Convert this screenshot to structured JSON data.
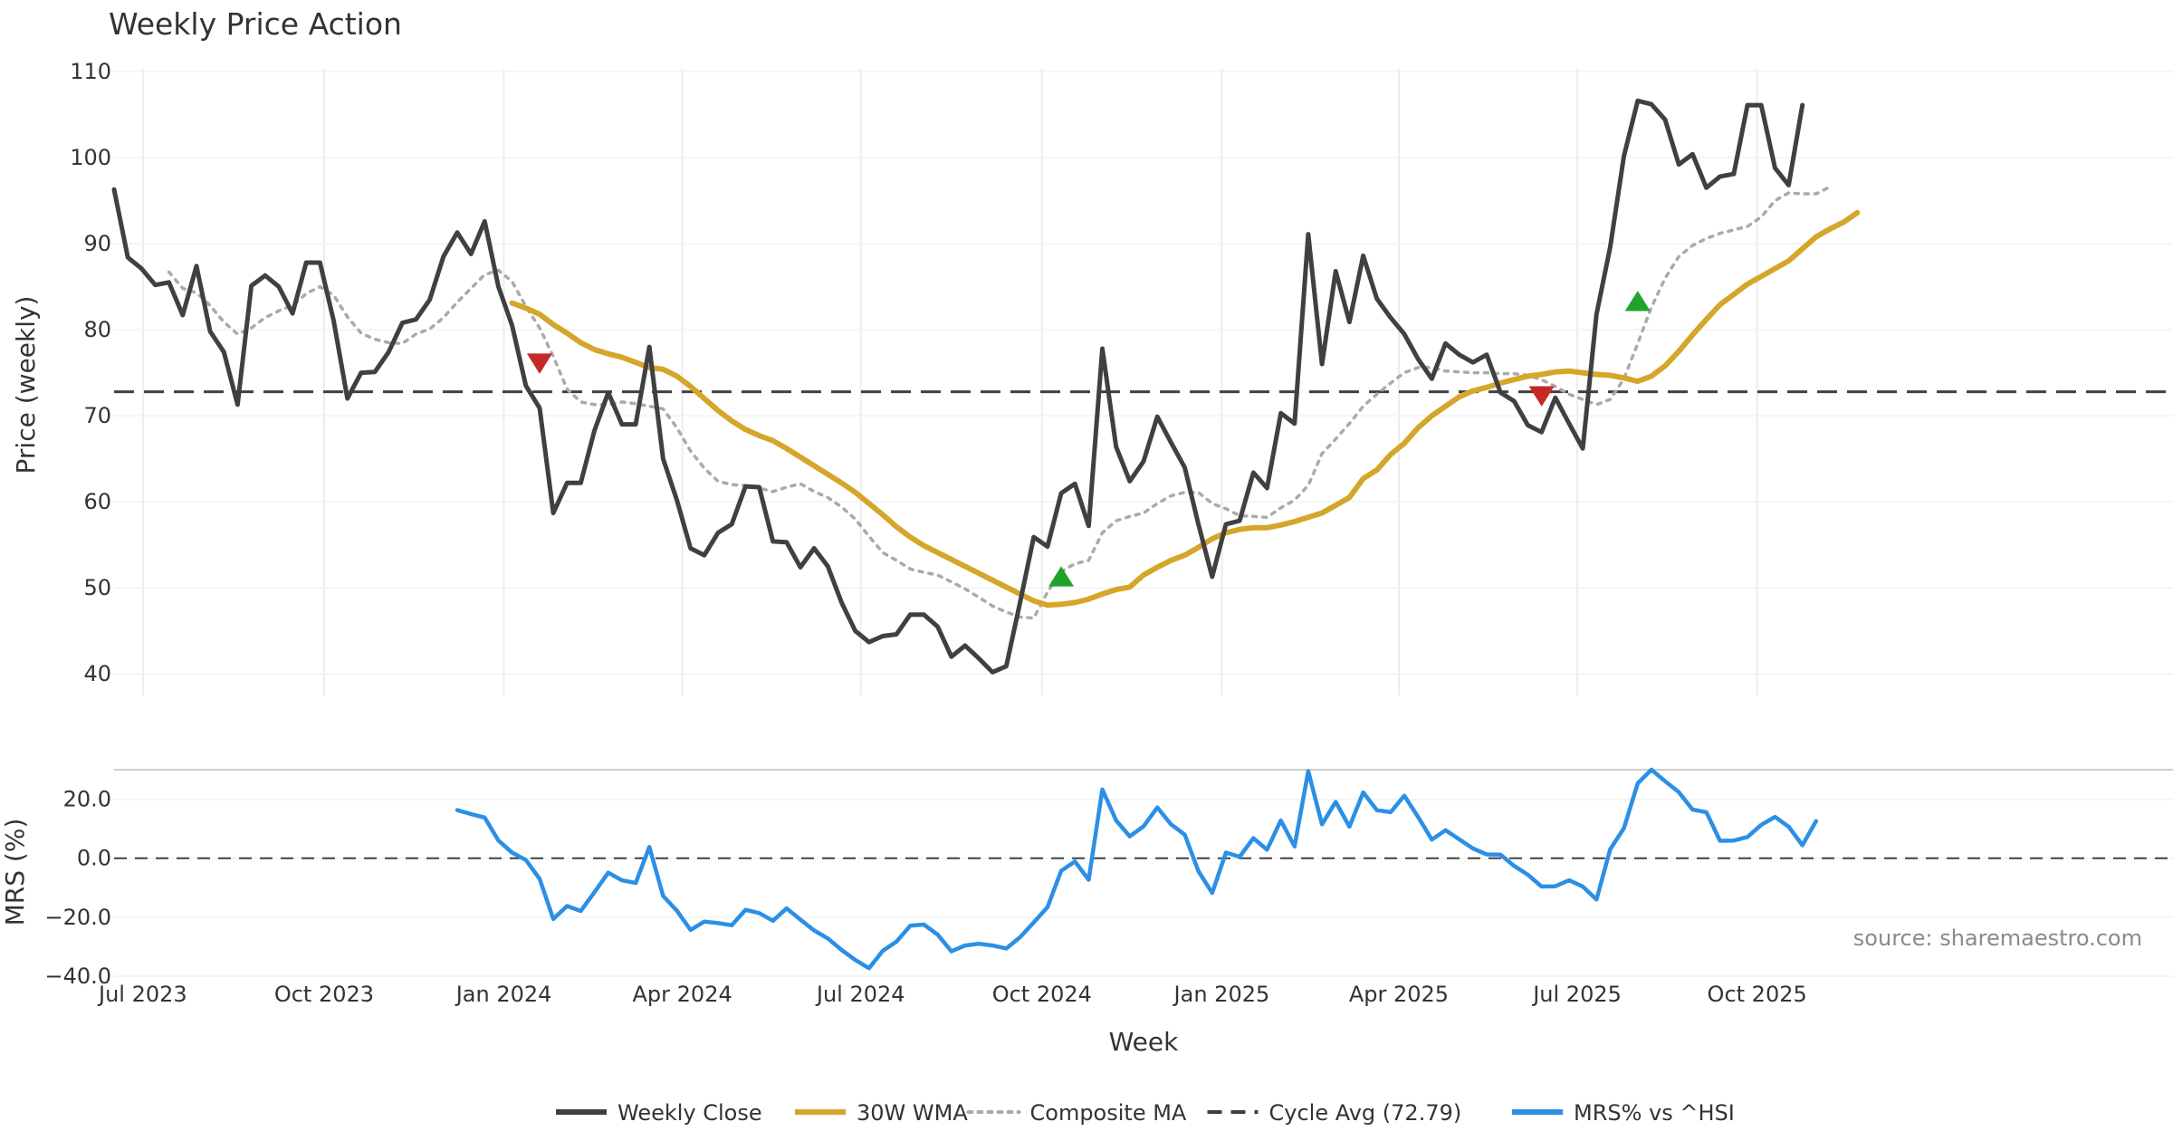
{
  "chart_data": {
    "type": "line",
    "title": "Weekly Price Action",
    "xlabel": "Week",
    "source": "source: sharemaestro.com",
    "x_start": "2023-06-16",
    "x_step_days": 7,
    "xticks": [
      {
        "label": "Jul 2023",
        "week": 2.1
      },
      {
        "label": "Oct 2023",
        "week": 15.3
      },
      {
        "label": "Jan 2024",
        "week": 28.4
      },
      {
        "label": "Apr 2024",
        "week": 41.4
      },
      {
        "label": "Jul 2024",
        "week": 54.4
      },
      {
        "label": "Oct 2024",
        "week": 67.6
      },
      {
        "label": "Jan 2025",
        "week": 80.7
      },
      {
        "label": "Apr 2025",
        "week": 93.6
      },
      {
        "label": "Jul 2025",
        "week": 106.6
      },
      {
        "label": "Oct 2025",
        "week": 119.7
      }
    ],
    "price_panel": {
      "ylabel": "Price (weekly)",
      "ylim": [
        37.5,
        112
      ],
      "yticks": [
        40,
        50,
        60,
        70,
        80,
        90,
        100,
        110
      ],
      "series": [
        {
          "name": "Weekly Close",
          "color": "#404040",
          "start_week": 0,
          "values": [
            96.3,
            88.4,
            87.1,
            85.2,
            85.5,
            81.7,
            87.4,
            79.8,
            77.4,
            71.3,
            85.1,
            86.3,
            85.0,
            81.9,
            87.8,
            87.8,
            81.0,
            72.0,
            75.0,
            75.1,
            77.4,
            80.8,
            81.2,
            83.5,
            88.5,
            91.3,
            88.8,
            92.6,
            85.0,
            80.5,
            73.5,
            70.9,
            58.7,
            62.2,
            62.2,
            68.3,
            72.7,
            69.0,
            69.0,
            78.0,
            65.0,
            60.2,
            54.6,
            53.8,
            56.4,
            57.4,
            61.8,
            61.7,
            55.4,
            55.3,
            52.4,
            54.6,
            52.5,
            48.3,
            45.0,
            43.7,
            44.4,
            44.6,
            46.9,
            46.9,
            45.5,
            42.0,
            43.3,
            41.8,
            40.2,
            40.9,
            48.3,
            55.9,
            54.8,
            61.0,
            62.1,
            57.2,
            77.8,
            66.4,
            62.4,
            64.7,
            69.9,
            66.9,
            64.0,
            57.4,
            51.3,
            57.4,
            57.8,
            63.4,
            61.6,
            70.3,
            69.1,
            91.1,
            76.0,
            86.8,
            80.9,
            88.6,
            83.6,
            81.4,
            79.5,
            76.6,
            74.3,
            78.4,
            77.1,
            76.2,
            77.1,
            72.7,
            71.7,
            68.9,
            68.1,
            72.1,
            69.1,
            66.2,
            81.8,
            89.6,
            100.2,
            106.6,
            106.2,
            104.4,
            99.2,
            100.4,
            96.5,
            97.8,
            98.1,
            106.1,
            106.1,
            98.8,
            96.8,
            106.1
          ]
        },
        {
          "name": "30W WMA",
          "color": "#d4a62a",
          "start_week": 29,
          "values": [
            83.1,
            82.5,
            81.8,
            80.6,
            79.6,
            78.5,
            77.7,
            77.2,
            76.8,
            76.2,
            75.6,
            75.4,
            74.6,
            73.4,
            72.0,
            70.6,
            69.4,
            68.4,
            67.7,
            67.1,
            66.2,
            65.2,
            64.2,
            63.2,
            62.2,
            61.1,
            59.8,
            58.5,
            57.1,
            55.9,
            54.9,
            54.1,
            53.3,
            52.5,
            51.7,
            50.9,
            50.1,
            49.3,
            48.5,
            48.0,
            48.1,
            48.3,
            48.7,
            49.3,
            49.8,
            50.1,
            51.5,
            52.4,
            53.2,
            53.8,
            54.7,
            55.7,
            56.4,
            56.8,
            57.0,
            57.0,
            57.3,
            57.7,
            58.2,
            58.7,
            59.6,
            60.5,
            62.7,
            63.7,
            65.5,
            66.8,
            68.6,
            70.0,
            71.1,
            72.2,
            72.9,
            73.3,
            73.8,
            74.2,
            74.6,
            74.8,
            75.1,
            75.2,
            75.0,
            74.8,
            74.7,
            74.4,
            74.0,
            74.6,
            75.8,
            77.5,
            79.4,
            81.2,
            82.9,
            84.1,
            85.3,
            86.2,
            87.1,
            88.0,
            89.4,
            90.8,
            91.7,
            92.5,
            93.6
          ]
        },
        {
          "name": "Composite MA",
          "color": "#aaaaaa",
          "start_week": 4,
          "values": [
            86.7,
            84.8,
            84.3,
            82.8,
            80.9,
            79.5,
            80.2,
            81.4,
            82.2,
            82.8,
            84.2,
            85.0,
            84.0,
            81.5,
            79.6,
            78.9,
            78.5,
            78.4,
            79.5,
            80.1,
            81.4,
            83.2,
            84.8,
            86.4,
            86.9,
            85.6,
            82.7,
            80.2,
            76.9,
            73.1,
            71.6,
            71.3,
            71.3,
            71.6,
            71.4,
            71.1,
            70.8,
            68.6,
            65.9,
            63.9,
            62.4,
            62.0,
            61.9,
            61.6,
            61.2,
            61.7,
            62.1,
            61.2,
            60.5,
            59.4,
            58.0,
            56.0,
            54.1,
            53.2,
            52.2,
            51.8,
            51.5,
            50.7,
            49.9,
            48.9,
            47.9,
            47.2,
            46.6,
            46.5,
            49.5,
            51.9,
            52.8,
            53.2,
            56.4,
            57.8,
            58.3,
            58.7,
            59.8,
            60.7,
            61.1,
            61.1,
            59.8,
            59.2,
            58.4,
            58.3,
            58.2,
            59.3,
            60.2,
            61.9,
            65.6,
            67.3,
            69.1,
            71.1,
            72.5,
            73.8,
            75.0,
            75.6,
            75.6,
            75.2,
            75.1,
            75.0,
            75.0,
            74.9,
            74.9,
            74.7,
            74.2,
            73.4,
            72.5,
            71.9,
            71.3,
            71.9,
            74.3,
            78.4,
            82.6,
            86.0,
            88.5,
            89.8,
            90.6,
            91.2,
            91.6,
            92.0,
            93.1,
            95.0,
            95.9,
            95.8,
            95.8,
            96.6
          ]
        }
      ],
      "reference_line": {
        "name": "Cycle Avg (72.79)",
        "value": 72.79,
        "color": "#404040"
      },
      "markers": [
        {
          "type": "sell",
          "week": 31,
          "value": 76.2,
          "color": "#c62828"
        },
        {
          "type": "buy",
          "week": 69,
          "value": 51.2,
          "color": "#1fa32a"
        },
        {
          "type": "sell",
          "week": 104,
          "value": 72.4,
          "color": "#c62828"
        },
        {
          "type": "buy",
          "week": 111,
          "value": 83.2,
          "color": "#1fa32a"
        }
      ]
    },
    "mrs_panel": {
      "ylabel": "MRS (%)",
      "ylim": [
        -40,
        30
      ],
      "yticks": [
        -40,
        -20,
        0,
        20
      ],
      "ytick_labels": [
        "−40.0",
        "−20.0",
        "0.0",
        "20.0"
      ],
      "series": [
        {
          "name": "MRS% vs ^HSI",
          "color": "#2b8fe6",
          "start_week": 25,
          "values": [
            16.3,
            15.0,
            13.8,
            6.0,
            1.9,
            -0.6,
            -7.0,
            -20.6,
            -16.2,
            -17.9,
            -11.5,
            -4.9,
            -7.5,
            -8.4,
            3.8,
            -12.8,
            -17.8,
            -24.3,
            -21.5,
            -22.0,
            -22.7,
            -17.5,
            -18.6,
            -21.2,
            -17.0,
            -20.8,
            -24.5,
            -27.2,
            -31.1,
            -34.5,
            -37.3,
            -31.4,
            -28.3,
            -22.9,
            -22.5,
            -25.9,
            -31.6,
            -29.6,
            -29.0,
            -29.6,
            -30.6,
            -26.8,
            -21.8,
            -16.6,
            -4.3,
            -1.1,
            -7.3,
            23.3,
            12.8,
            7.4,
            10.8,
            17.2,
            11.5,
            8.0,
            -4.4,
            -11.8,
            1.9,
            0.5,
            6.8,
            2.9,
            12.8,
            4.0,
            29.5,
            11.5,
            19.1,
            10.7,
            22.3,
            16.3,
            15.6,
            21.2,
            14.0,
            6.3,
            9.5,
            6.4,
            3.3,
            1.3,
            1.2,
            -2.6,
            -5.6,
            -9.6,
            -9.5,
            -7.5,
            -9.6,
            -14.0,
            3.0,
            10.2,
            25.4,
            30.0,
            26.1,
            22.4,
            16.5,
            15.6,
            5.9,
            6.0,
            7.2,
            11.3,
            14.0,
            10.7,
            4.4,
            12.6
          ]
        }
      ],
      "reference_line": {
        "value": 0,
        "color": "#404040"
      }
    },
    "legend": {
      "placement": "bottom-center",
      "entries": [
        {
          "label": "Weekly Close",
          "style": "solid",
          "color": "#404040"
        },
        {
          "label": "30W WMA",
          "style": "solid",
          "color": "#d4a62a"
        },
        {
          "label": "Composite MA",
          "style": "dotted",
          "color": "#aaaaaa"
        },
        {
          "label": "Cycle Avg (72.79)",
          "style": "dashed",
          "color": "#404040"
        },
        {
          "label": "MRS% vs ^HSI",
          "style": "solid",
          "color": "#2b8fe6"
        }
      ]
    }
  }
}
